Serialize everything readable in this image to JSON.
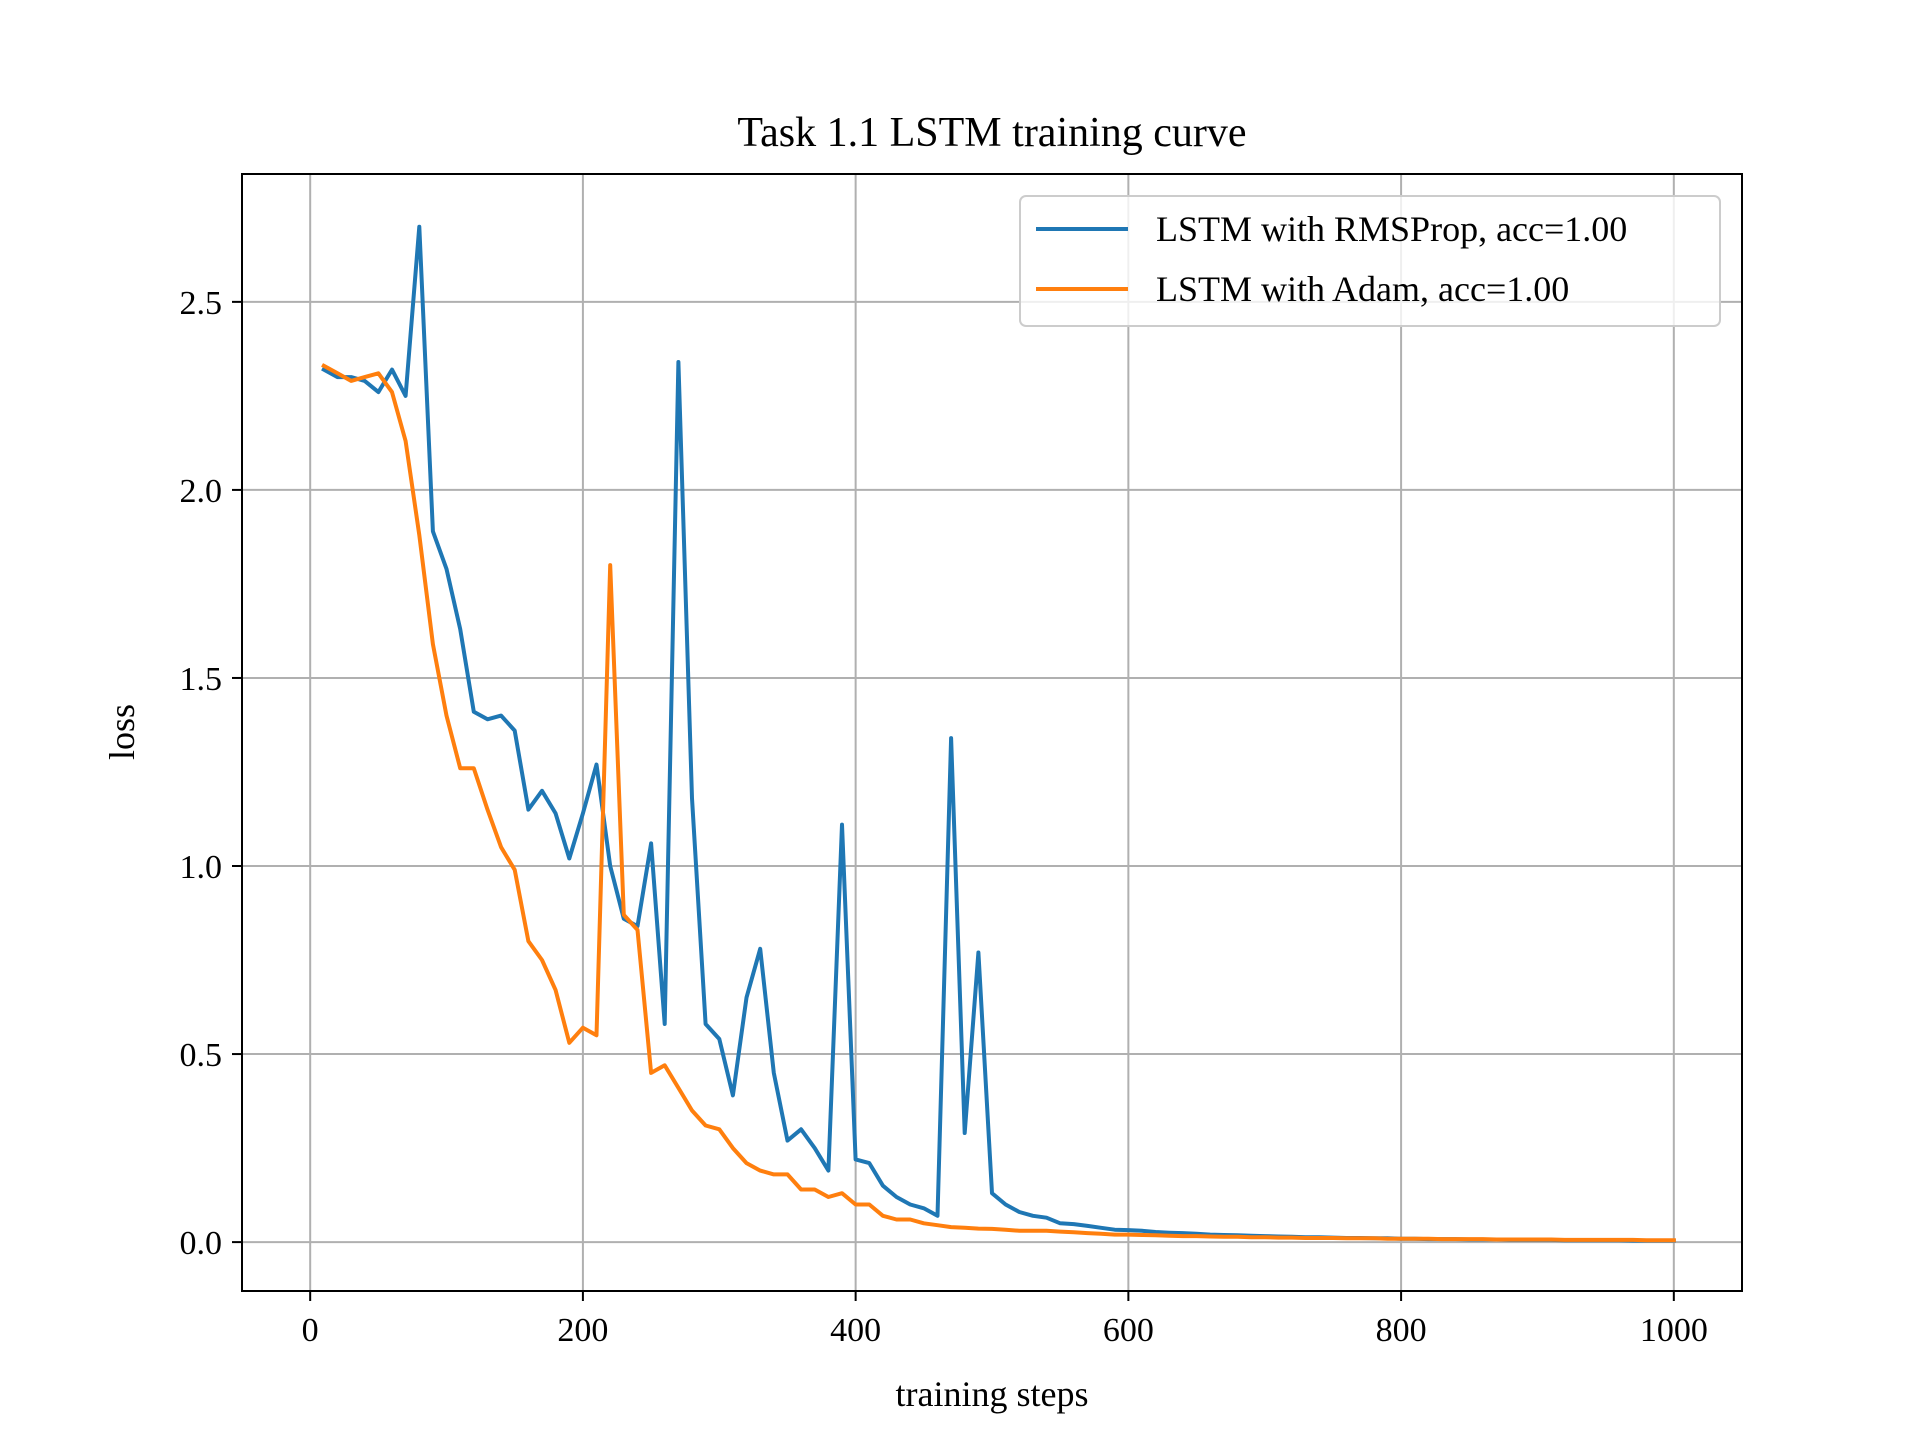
{
  "chart_data": {
    "type": "line",
    "title": "Task 1.1 LSTM training curve",
    "xlabel": "training steps",
    "ylabel": "loss",
    "xlim": [
      -50,
      1050
    ],
    "ylim": [
      -0.13,
      2.84
    ],
    "xticks": [
      0,
      200,
      400,
      600,
      800,
      1000
    ],
    "xtick_labels": [
      "0",
      "200",
      "400",
      "600",
      "800",
      "1000"
    ],
    "yticks": [
      0.0,
      0.5,
      1.0,
      1.5,
      2.0,
      2.5
    ],
    "ytick_labels": [
      "0.0",
      "0.5",
      "1.0",
      "1.5",
      "2.0",
      "2.5"
    ],
    "grid": true,
    "legend_position": "top-right",
    "x": [
      10,
      20,
      30,
      40,
      50,
      60,
      70,
      80,
      90,
      100,
      110,
      120,
      130,
      140,
      150,
      160,
      170,
      180,
      190,
      200,
      210,
      220,
      230,
      240,
      250,
      260,
      270,
      280,
      290,
      300,
      310,
      320,
      330,
      340,
      350,
      360,
      370,
      380,
      390,
      400,
      410,
      420,
      430,
      440,
      450,
      460,
      470,
      480,
      490,
      500,
      510,
      520,
      530,
      540,
      550,
      560,
      570,
      580,
      590,
      600,
      610,
      620,
      630,
      640,
      650,
      660,
      670,
      680,
      690,
      700,
      710,
      720,
      730,
      740,
      750,
      760,
      770,
      780,
      790,
      800,
      810,
      820,
      830,
      840,
      850,
      860,
      870,
      880,
      890,
      900,
      910,
      920,
      930,
      940,
      950,
      960,
      970,
      980,
      990,
      1000
    ],
    "series": [
      {
        "name": "LSTM with RMSProp, acc=1.00",
        "color": "#1f77b4",
        "values": [
          2.32,
          2.3,
          2.3,
          2.29,
          2.26,
          2.32,
          2.25,
          2.7,
          1.89,
          1.79,
          1.63,
          1.41,
          1.39,
          1.4,
          1.36,
          1.15,
          1.2,
          1.14,
          1.02,
          1.14,
          1.27,
          1.0,
          0.86,
          0.84,
          1.06,
          0.58,
          2.34,
          1.18,
          0.58,
          0.54,
          0.39,
          0.65,
          0.78,
          0.45,
          0.27,
          0.3,
          0.25,
          0.19,
          1.11,
          0.22,
          0.21,
          0.15,
          0.12,
          0.1,
          0.09,
          0.07,
          1.34,
          0.29,
          0.77,
          0.13,
          0.1,
          0.08,
          0.07,
          0.065,
          0.05,
          0.048,
          0.043,
          0.038,
          0.033,
          0.032,
          0.03,
          0.027,
          0.025,
          0.024,
          0.022,
          0.02,
          0.019,
          0.018,
          0.017,
          0.016,
          0.015,
          0.014,
          0.013,
          0.013,
          0.012,
          0.011,
          0.011,
          0.01,
          0.01,
          0.009,
          0.009,
          0.008,
          0.008,
          0.008,
          0.007,
          0.007,
          0.007,
          0.006,
          0.006,
          0.006,
          0.006,
          0.005,
          0.005,
          0.005,
          0.005,
          0.005,
          0.004,
          0.004,
          0.004,
          0.004
        ]
      },
      {
        "name": "LSTM with Adam, acc=1.00",
        "color": "#ff7f0e",
        "values": [
          2.33,
          2.31,
          2.29,
          2.3,
          2.31,
          2.26,
          2.13,
          1.88,
          1.59,
          1.4,
          1.26,
          1.26,
          1.15,
          1.05,
          0.99,
          0.8,
          0.75,
          0.67,
          0.53,
          0.57,
          0.55,
          1.8,
          0.87,
          0.83,
          0.45,
          0.47,
          0.41,
          0.35,
          0.31,
          0.3,
          0.25,
          0.21,
          0.19,
          0.18,
          0.18,
          0.14,
          0.14,
          0.12,
          0.13,
          0.1,
          0.1,
          0.07,
          0.06,
          0.06,
          0.05,
          0.045,
          0.04,
          0.038,
          0.036,
          0.035,
          0.033,
          0.03,
          0.03,
          0.03,
          0.028,
          0.026,
          0.024,
          0.022,
          0.02,
          0.02,
          0.019,
          0.018,
          0.017,
          0.016,
          0.016,
          0.015,
          0.014,
          0.014,
          0.013,
          0.013,
          0.012,
          0.012,
          0.011,
          0.011,
          0.011,
          0.01,
          0.01,
          0.01,
          0.009,
          0.009,
          0.009,
          0.009,
          0.008,
          0.008,
          0.008,
          0.008,
          0.007,
          0.007,
          0.007,
          0.007,
          0.007,
          0.006,
          0.006,
          0.006,
          0.006,
          0.006,
          0.006,
          0.005,
          0.005,
          0.005
        ]
      }
    ]
  }
}
